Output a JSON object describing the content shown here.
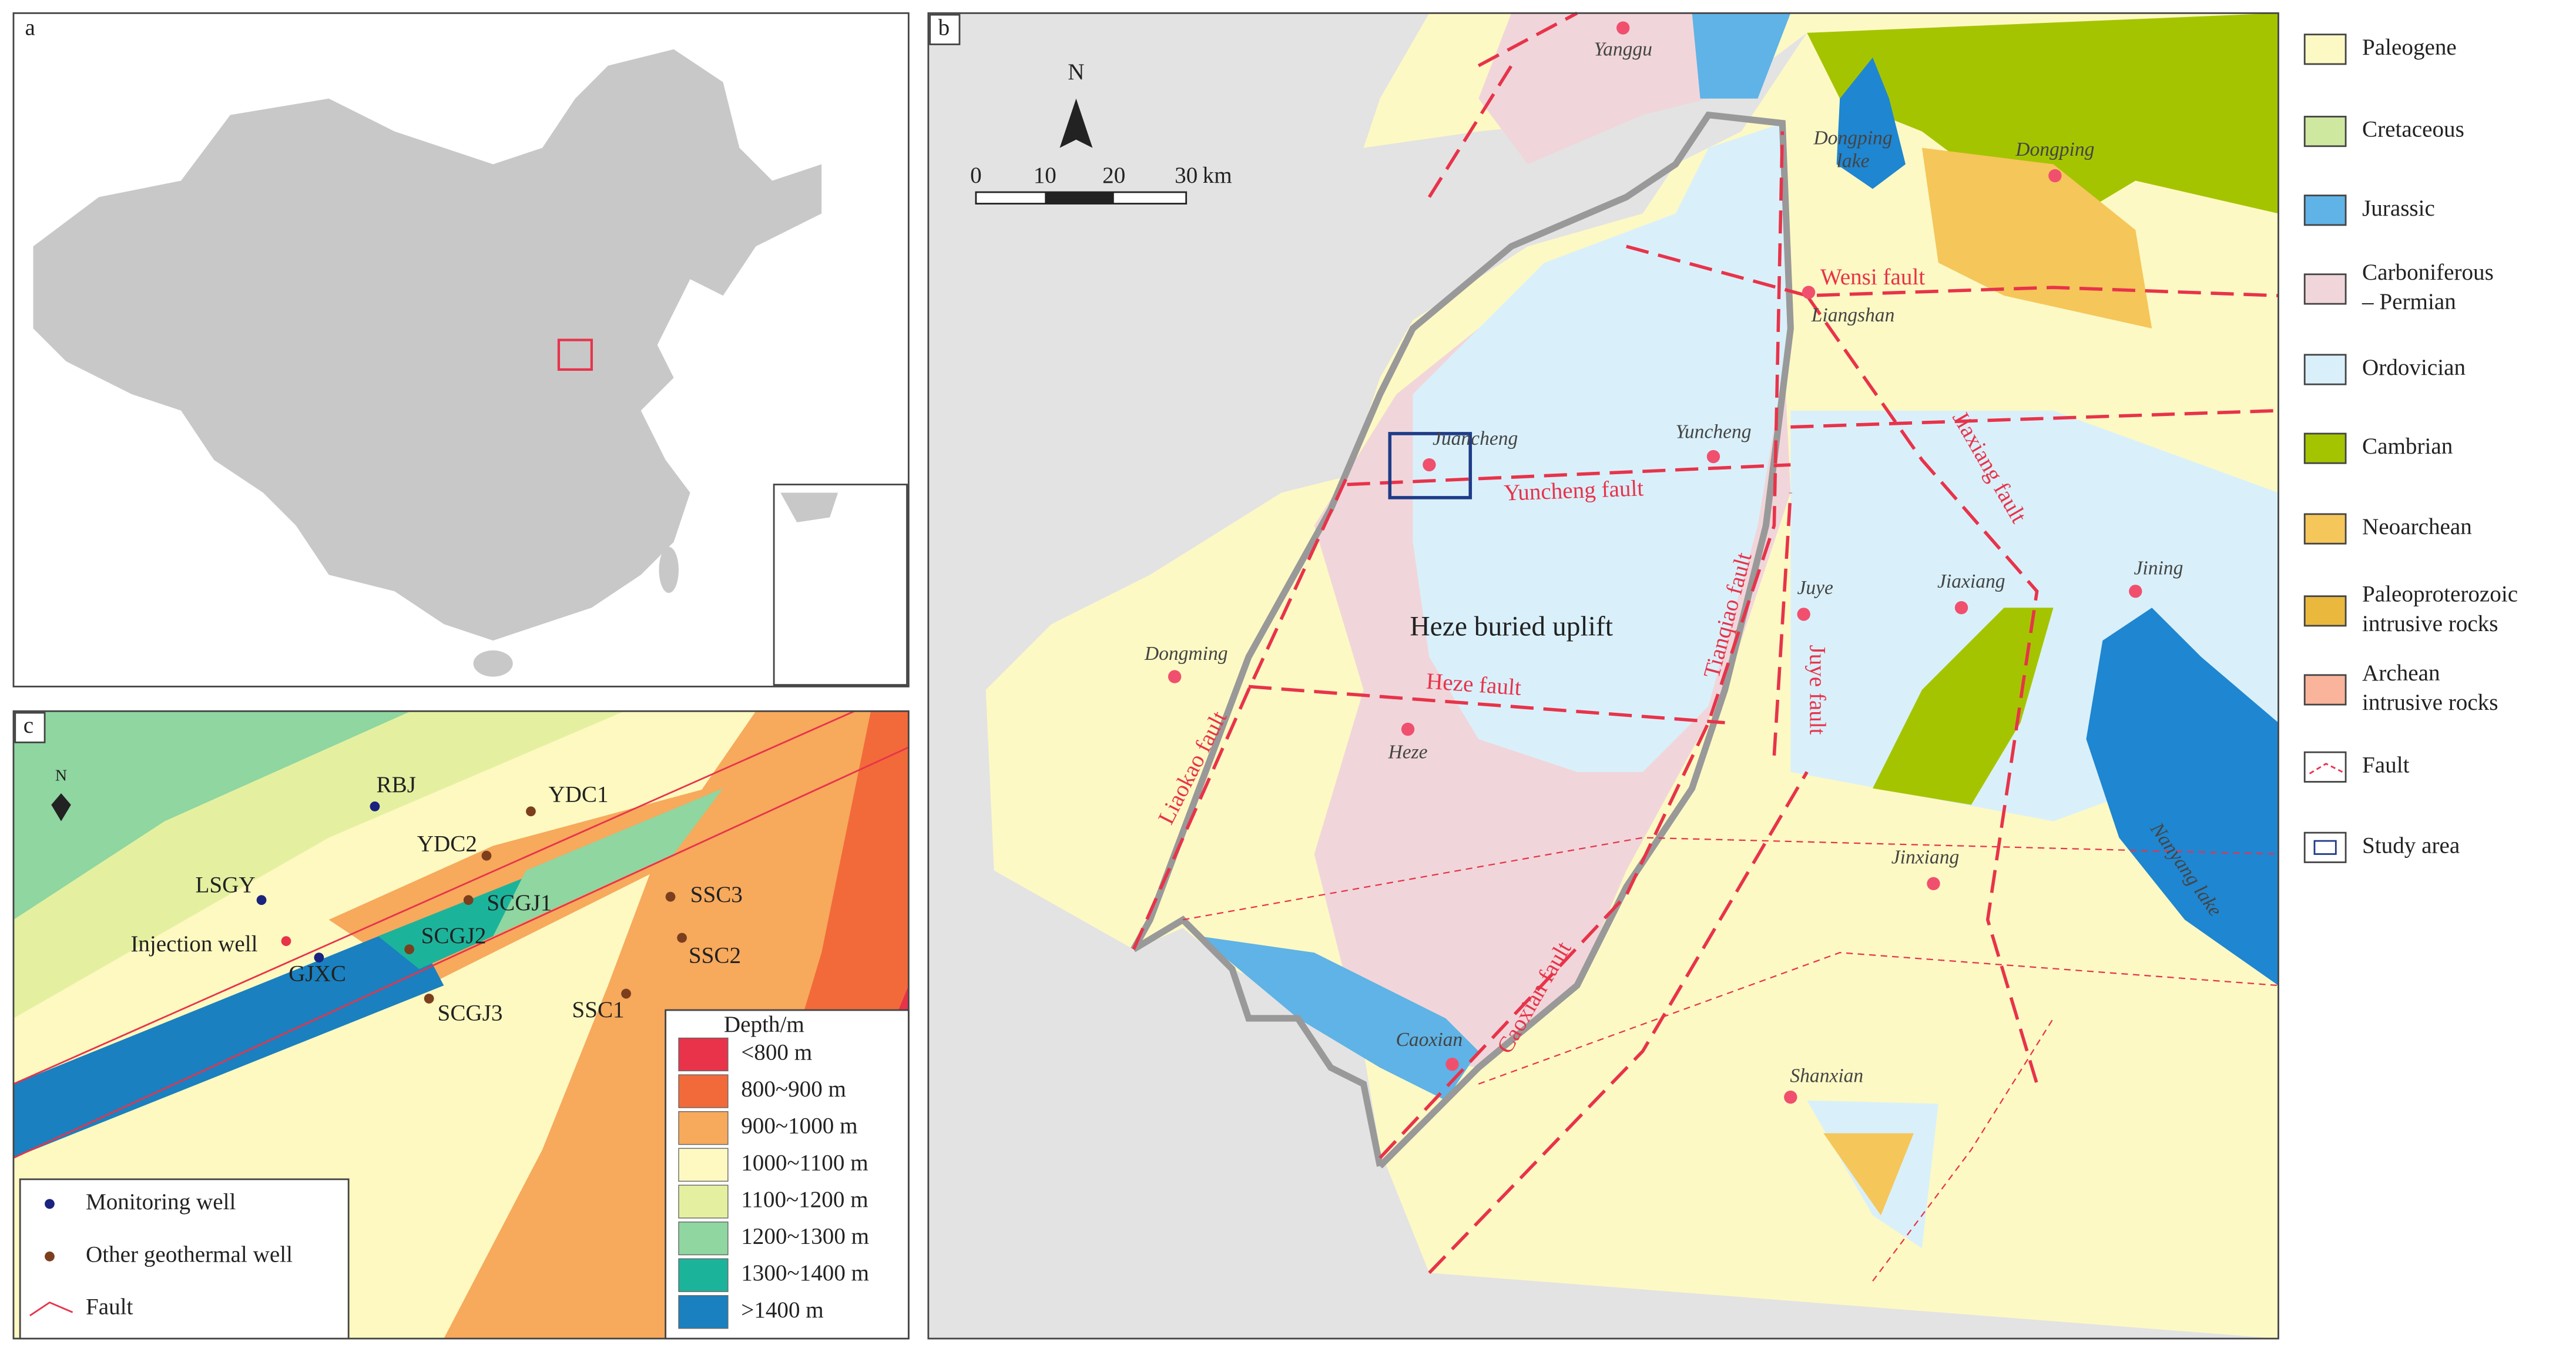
{
  "panel_a": {
    "label": "a"
  },
  "panel_b": {
    "label": "b",
    "north": "N",
    "scale": {
      "ticks": [
        "0",
        "10",
        "20",
        "30"
      ],
      "unit": "km"
    },
    "places": [
      "Yanggu",
      "Juancheng",
      "Yuncheng",
      "Liangshan",
      "Dongping",
      "Dongming",
      "Heze",
      "Juye",
      "Jiaxiang",
      "Jining",
      "Jinxiang",
      "Caoxian",
      "Shanxian"
    ],
    "faults": [
      "Wensi fault",
      "Yuncheng fault",
      "Heze fault",
      "Liaokao fault",
      "Caoxian fault",
      "Tianqiao fault",
      "Juye fault",
      "Jiaxiang fault"
    ],
    "lakes": [
      [
        "Dongping",
        "lake"
      ],
      [
        "Nanyang lake"
      ]
    ],
    "uplift": "Heze buried uplift"
  },
  "legend_b": {
    "items": [
      [
        "Paleogene"
      ],
      [
        "Cretaceous"
      ],
      [
        "Jurassic"
      ],
      [
        "Carboniferous",
        "– Permian"
      ],
      [
        "Ordovician"
      ],
      [
        "Cambrian"
      ],
      [
        "Neoarchean"
      ],
      [
        "Paleoproterozoic",
        "intrusive rocks"
      ],
      [
        "Archean",
        "intrusive rocks"
      ],
      [
        "Fault"
      ],
      [
        "Study area"
      ]
    ]
  },
  "panel_c": {
    "label": "c",
    "north": "N",
    "wells": [
      "RBJ",
      "YDC1",
      "YDC2",
      "LSGY",
      "SCGJ1",
      "Injection well",
      "SCGJ2",
      "GJXC",
      "SSC3",
      "SSC2",
      "SSC1",
      "SCGJ3"
    ],
    "depth_legend": {
      "title": "Depth/m",
      "items": [
        "<800 m",
        "800~900 m",
        "900~1000 m",
        "1000~1100 m",
        "1100~1200 m",
        "1200~1300 m",
        "1300~1400 m",
        ">1400 m"
      ]
    },
    "well_legend": [
      "Monitoring well",
      "Other geothermal well",
      "Fault"
    ]
  }
}
